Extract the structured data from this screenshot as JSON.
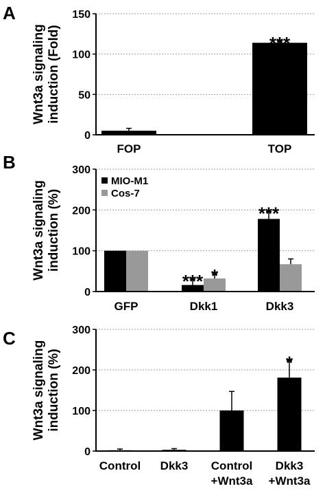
{
  "chart_data": [
    {
      "type": "bar",
      "panel": "A",
      "ylabel": [
        "Wnt3a signaling",
        "induction (Fold)"
      ],
      "ylim": [
        0,
        150
      ],
      "yticks": [
        0,
        50,
        100,
        150
      ],
      "grid": true,
      "categories": [
        [
          "FOP"
        ],
        [
          "TOP"
        ]
      ],
      "series": [
        {
          "color": "#000000",
          "values": [
            5,
            114
          ],
          "errors": [
            3,
            2
          ],
          "significance": [
            "",
            "***"
          ]
        }
      ]
    },
    {
      "type": "bar",
      "panel": "B",
      "ylabel": [
        "Wnt3a signaling",
        "induction (%)"
      ],
      "ylim": [
        0,
        300
      ],
      "yticks": [
        0,
        100,
        200,
        300
      ],
      "grid": true,
      "legend": "top-left",
      "categories": [
        [
          "GFP"
        ],
        [
          "Dkk1"
        ],
        [
          "Dkk3"
        ]
      ],
      "series": [
        {
          "name": "MIO-M1",
          "color": "#000000",
          "values": [
            100,
            16,
            178
          ],
          "errors": [
            0,
            14,
            18
          ],
          "significance": [
            "",
            "***",
            "***"
          ]
        },
        {
          "name": "Cos-7",
          "color": "#999999",
          "values": [
            100,
            32,
            67
          ],
          "errors": [
            0,
            12,
            13
          ],
          "significance": [
            "",
            "*",
            ""
          ]
        }
      ]
    },
    {
      "type": "bar",
      "panel": "C",
      "ylabel": [
        "Wnt3a signaling",
        "induction (%)"
      ],
      "ylim": [
        0,
        300
      ],
      "yticks": [
        0,
        100,
        200,
        300
      ],
      "grid": true,
      "categories": [
        [
          "Control"
        ],
        [
          "Dkk3"
        ],
        [
          "Control",
          "+Wnt3a"
        ],
        [
          "Dkk3",
          "+Wnt3a"
        ]
      ],
      "series": [
        {
          "color": "#000000",
          "values": [
            2,
            3,
            100,
            181
          ],
          "errors": [
            3,
            3,
            47,
            42
          ],
          "significance": [
            "",
            "",
            "",
            "*"
          ]
        }
      ]
    }
  ]
}
